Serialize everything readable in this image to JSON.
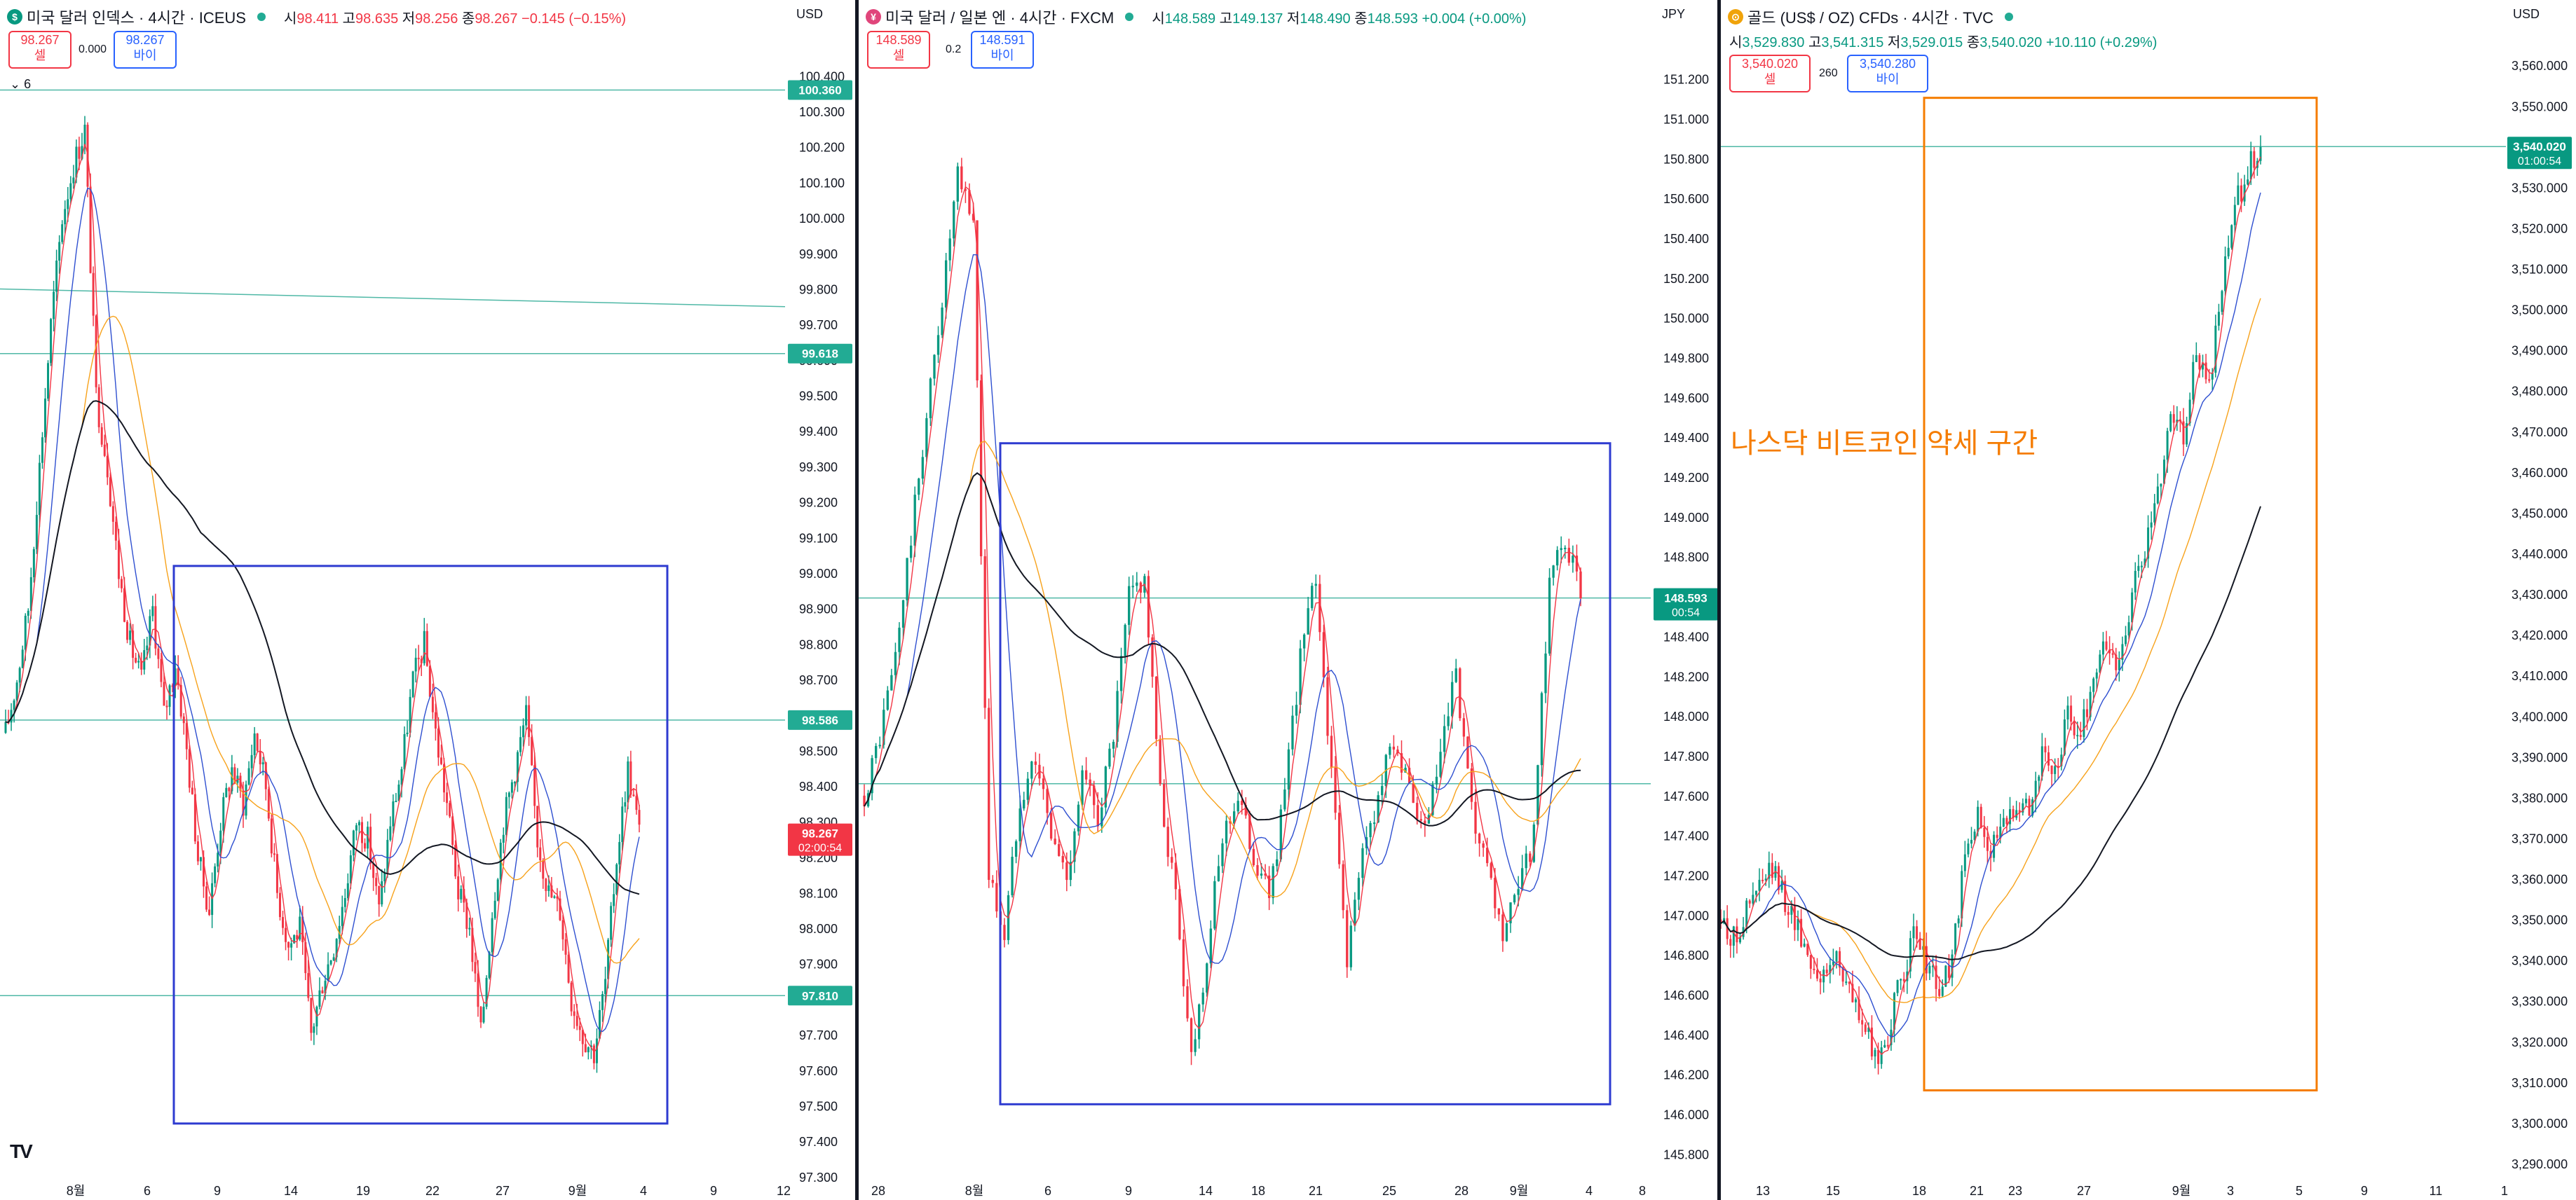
{
  "panels": [
    {
      "id": "dxy",
      "title": "미국 달러 인덱스 · 4시간 · ICEUS",
      "logo": "$",
      "logo_color": "#089981",
      "ohlc": {
        "o_label": "시",
        "o": "98.411",
        "h_label": "고",
        "h": "98.635",
        "l_label": "저",
        "l": "98.256",
        "c_label": "종",
        "c": "98.267",
        "chg": "−0.145 (−0.15%)"
      },
      "sell": {
        "price": "98.267",
        "label": "셀"
      },
      "buy": {
        "price": "98.267",
        "label": "바이"
      },
      "spread": "0.000",
      "indicator_toggle": "6",
      "unit": "USD",
      "price_tags": [
        {
          "value": "100.360",
          "color": "#22ab94"
        },
        {
          "value": "99.618",
          "color": "#22ab94"
        },
        {
          "value": "98.586",
          "color": "#22ab94"
        },
        {
          "value": "98.267",
          "sub": "02:00:54",
          "color": "#f23645"
        },
        {
          "value": "97.810",
          "color": "#22ab94"
        }
      ],
      "x_ticks": [
        "8월",
        "6",
        "9",
        "14",
        "19",
        "22",
        "27",
        "9월",
        "4",
        "9",
        "12"
      ],
      "chart_data": {
        "type": "candlestick",
        "y_axis_ticks": [
          97.3,
          97.4,
          97.5,
          97.6,
          97.7,
          97.8,
          97.9,
          98.0,
          98.1,
          98.2,
          98.3,
          98.4,
          98.5,
          98.6,
          98.7,
          98.8,
          98.9,
          99.0,
          99.1,
          99.2,
          99.3,
          99.4,
          99.5,
          99.6,
          99.7,
          99.8,
          99.9,
          100.0,
          100.1,
          100.2,
          100.3,
          100.4
        ],
        "ylim": [
          97.28,
          100.44
        ],
        "last_price": 98.267,
        "horizontal_lines": [
          100.36,
          99.618,
          98.586,
          97.81
        ],
        "trend_line": {
          "from": 99.8,
          "to": 99.75
        },
        "close_path": [
          98.55,
          98.7,
          98.9,
          99.3,
          99.7,
          100.0,
          100.15,
          100.25,
          99.5,
          99.3,
          99.0,
          98.8,
          98.7,
          98.9,
          98.6,
          98.75,
          98.5,
          98.2,
          98.05,
          98.3,
          98.45,
          98.35,
          98.55,
          98.4,
          98.1,
          97.95,
          98.0,
          97.7,
          97.85,
          97.95,
          98.1,
          98.3,
          98.25,
          98.05,
          98.3,
          98.45,
          98.7,
          98.8,
          98.55,
          98.35,
          98.1,
          98.0,
          97.7,
          98.05,
          98.3,
          98.45,
          98.6,
          98.25,
          98.1,
          98.05,
          97.8,
          97.7,
          97.65,
          97.85,
          98.2,
          98.45,
          98.27
        ]
      }
    },
    {
      "id": "usdjpy",
      "title": "미국 달러 / 일본 엔 · 4시간 · FXCM",
      "logo": "¥",
      "logo_color": "#e0457b",
      "ohlc": {
        "o_label": "시",
        "o": "148.589",
        "h_label": "고",
        "h": "149.137",
        "l_label": "저",
        "l": "148.490",
        "c_label": "종",
        "c": "148.593",
        "chg": "+0.004 (+0.00%)"
      },
      "sell": {
        "price": "148.589",
        "label": "셀"
      },
      "buy": {
        "price": "148.591",
        "label": "바이"
      },
      "spread": "0.2",
      "unit": "JPY",
      "price_tags": [
        {
          "value": "148.593",
          "sub": "00:54",
          "color": "#089981"
        }
      ],
      "x_ticks": [
        "28",
        "8월",
        "6",
        "9",
        "14",
        "18",
        "21",
        "25",
        "28",
        "9월",
        "4",
        "8"
      ],
      "chart_data": {
        "type": "candlestick",
        "y_axis_ticks": [
          145.8,
          146.0,
          146.2,
          146.4,
          146.6,
          146.8,
          147.0,
          147.2,
          147.4,
          147.6,
          147.8,
          148.0,
          148.2,
          148.4,
          148.6,
          148.8,
          149.0,
          149.2,
          149.4,
          149.6,
          149.8,
          150.0,
          150.2,
          150.4,
          150.6,
          150.8,
          151.0,
          151.2
        ],
        "ylim": [
          145.65,
          151.35
        ],
        "last_price": 148.593,
        "horizontal_lines": [
          148.593,
          147.66
        ],
        "close_path": [
          147.6,
          147.9,
          148.3,
          148.9,
          149.5,
          150.1,
          150.7,
          150.5,
          147.2,
          146.9,
          147.6,
          147.8,
          147.4,
          147.2,
          147.7,
          147.5,
          147.9,
          148.6,
          148.7,
          147.6,
          147.1,
          146.3,
          146.8,
          147.4,
          147.6,
          147.3,
          147.1,
          147.6,
          148.3,
          148.7,
          147.7,
          146.8,
          147.3,
          147.6,
          147.9,
          147.6,
          147.4,
          147.8,
          148.2,
          147.5,
          147.2,
          146.9,
          147.1,
          147.4,
          148.7,
          148.9,
          148.59
        ]
      }
    },
    {
      "id": "gold",
      "title": "골드 (US$ / OZ) CFDs · 4시간 · TVC",
      "logo": "⊙",
      "logo_color": "#f0a30a",
      "ohlc": {
        "o_label": "시",
        "o": "3,529.830",
        "h_label": "고",
        "h": "3,541.315",
        "l_label": "저",
        "l": "3,529.015",
        "c_label": "종",
        "c": "3,540.020",
        "chg": "+10.110 (+0.29%)"
      },
      "sell": {
        "price": "3,540.020",
        "label": "셀"
      },
      "buy": {
        "price": "3,540.280",
        "label": "바이"
      },
      "spread": "260",
      "unit": "USD",
      "annotation": "나스닥 비트코인 약세 구간",
      "price_tags": [
        {
          "value": "3,540.020",
          "sub": "01:00:54",
          "color": "#089981"
        }
      ],
      "x_ticks": [
        "13",
        "15",
        "18",
        "21",
        "23",
        "27",
        "9월",
        "3",
        "5",
        "9",
        "11",
        "1"
      ],
      "chart_data": {
        "type": "candlestick",
        "y_axis_ticks": [
          3290,
          3300,
          3310,
          3320,
          3330,
          3340,
          3350,
          3360,
          3370,
          3380,
          3390,
          3400,
          3410,
          3420,
          3430,
          3440,
          3450,
          3460,
          3470,
          3480,
          3490,
          3500,
          3510,
          3520,
          3530,
          3540,
          3550,
          3560
        ],
        "y_tick_labels": [
          "3,290.000",
          "3,300.000",
          "3,310.000",
          "3,320.000",
          "3,330.000",
          "3,340.000",
          "3,350.000",
          "3,360.000",
          "3,370.000",
          "3,380.000",
          "3,390.000",
          "3,400.000",
          "3,410.000",
          "3,420.000",
          "3,430.000",
          "3,440.000",
          "3,450.000",
          "3,460.000",
          "3,470.000",
          "3,480.000",
          "3,490.000",
          "3,500.000",
          "3,510.000",
          "3,520.000",
          "3,530.000",
          "3,540.000",
          "3,550.000",
          "3,560.000"
        ],
        "ylim": [
          3285,
          3564
        ],
        "last_price": 3540.02,
        "horizontal_lines": [
          3540.02
        ],
        "close_path": [
          3350,
          3345,
          3352,
          3358,
          3362,
          3355,
          3348,
          3340,
          3335,
          3342,
          3332,
          3325,
          3315,
          3322,
          3335,
          3345,
          3340,
          3332,
          3340,
          3365,
          3375,
          3368,
          3372,
          3380,
          3378,
          3390,
          3385,
          3400,
          3395,
          3410,
          3418,
          3412,
          3430,
          3440,
          3455,
          3475,
          3470,
          3490,
          3480,
          3505,
          3525,
          3535,
          3540
        ]
      }
    }
  ]
}
